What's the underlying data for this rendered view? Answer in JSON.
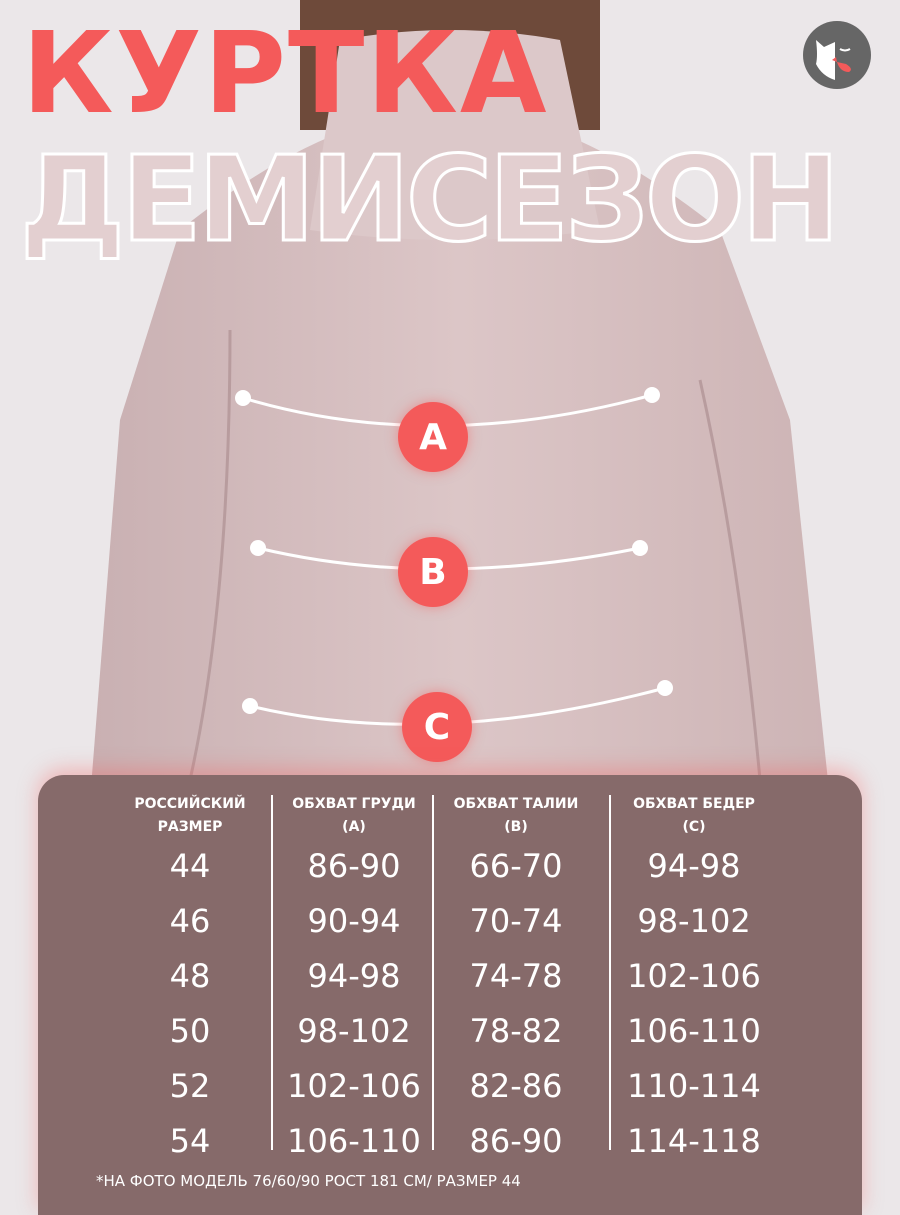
{
  "title": "КУРТКА",
  "subtitle": "ДЕМИСЕЗОН",
  "colors": {
    "accent": "#f45a5a",
    "panel": "#866a6a",
    "jacket": "#d8c2c3"
  },
  "logo": {
    "icon": "cat-face-logo"
  },
  "markers": [
    "A",
    "B",
    "C"
  ],
  "table": {
    "headers": [
      [
        "РОССИЙСКИЙ",
        "РАЗМЕР"
      ],
      [
        "ОБХВАТ ГРУДИ",
        "(А)"
      ],
      [
        "ОБХВАТ ТАЛИИ",
        "(В)"
      ],
      [
        "ОБХВАТ БЕДЕР",
        "(С)"
      ]
    ],
    "columns": [
      [
        "44",
        "46",
        "48",
        "50",
        "52",
        "54"
      ],
      [
        "86-90",
        "90-94",
        "94-98",
        "98-102",
        "102-106",
        "106-110"
      ],
      [
        "66-70",
        "70-74",
        "74-78",
        "78-82",
        "82-86",
        "86-90"
      ],
      [
        "94-98",
        "98-102",
        "102-106",
        "106-110",
        "110-114",
        "114-118"
      ]
    ]
  },
  "note": "*НА ФОТО МОДЕЛЬ 76/60/90 РОСТ 181 СМ/ РАЗМЕР 44"
}
